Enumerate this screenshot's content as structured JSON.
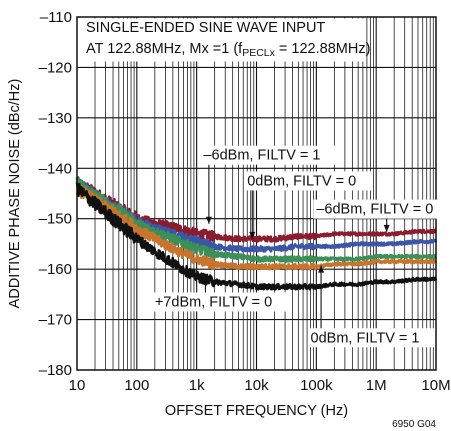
{
  "chart_data": {
    "type": "line",
    "title_line1": "SINGLE-ENDED SINE WAVE INPUT",
    "title_line2_pre": "AT 122.88MHz, Mx =1 (f",
    "title_line2_sub": "PECLx",
    "title_line2_post": " = 122.88MHz)",
    "xlabel": "OFFSET FREQUENCY (Hz)",
    "ylabel": "ADDITIVE PHASE NOISE (dBc/Hz)",
    "x_scale": "log",
    "xlim": [
      10,
      10000000
    ],
    "ylim": [
      -180,
      -110
    ],
    "x_ticks": [
      {
        "value": 10,
        "label": "10"
      },
      {
        "value": 100,
        "label": "100"
      },
      {
        "value": 1000,
        "label": "1k"
      },
      {
        "value": 10000,
        "label": "10k"
      },
      {
        "value": 100000,
        "label": "100k"
      },
      {
        "value": 1000000,
        "label": "1M"
      },
      {
        "value": 10000000,
        "label": "10M"
      }
    ],
    "y_ticks": [
      {
        "value": -110,
        "label": "–110"
      },
      {
        "value": -120,
        "label": "–120"
      },
      {
        "value": -130,
        "label": "–130"
      },
      {
        "value": -140,
        "label": "–140"
      },
      {
        "value": -150,
        "label": "–150"
      },
      {
        "value": -160,
        "label": "–160"
      },
      {
        "value": -170,
        "label": "–170"
      },
      {
        "value": -180,
        "label": "–180"
      }
    ],
    "grid": true,
    "series": [
      {
        "color": "#8a1c2e",
        "x": [
          10,
          20,
          50,
          100,
          200,
          500,
          1000,
          2000,
          5000,
          10000,
          20000,
          50000,
          100000,
          200000,
          500000,
          1000000,
          2000000,
          5000000,
          10000000
        ],
        "y": [
          -143,
          -145,
          -148,
          -150,
          -151,
          -152,
          -153,
          -153.5,
          -154,
          -154,
          -154,
          -153.5,
          -153.5,
          -153,
          -153,
          -153,
          -153,
          -152.5,
          -152.5
        ]
      },
      {
        "color": "#3b55a8",
        "x": [
          10,
          20,
          50,
          100,
          200,
          500,
          1000,
          2000,
          5000,
          10000,
          20000,
          50000,
          100000,
          200000,
          500000,
          1000000,
          2000000,
          5000000,
          10000000
        ],
        "y": [
          -143,
          -145.5,
          -148.5,
          -150.5,
          -152,
          -153.5,
          -154.5,
          -155.5,
          -156,
          -156,
          -156,
          -155.5,
          -155.5,
          -155.5,
          -155,
          -155,
          -155,
          -154.5,
          -154.5
        ]
      },
      {
        "color": "#3d8f5a",
        "x": [
          10,
          20,
          50,
          100,
          200,
          500,
          1000,
          2000,
          5000,
          10000,
          20000,
          50000,
          100000,
          200000,
          500000,
          1000000,
          2000000,
          5000000,
          10000000
        ],
        "y": [
          -143,
          -145.5,
          -148.5,
          -151,
          -152.5,
          -154.5,
          -156,
          -157,
          -157.5,
          -158,
          -158,
          -158,
          -158,
          -158,
          -158,
          -157.5,
          -157.5,
          -157.5,
          -157.5
        ]
      },
      {
        "color": "#c8742d",
        "x": [
          10,
          20,
          50,
          100,
          200,
          500,
          1000,
          2000,
          5000,
          10000,
          20000,
          50000,
          100000,
          200000,
          500000,
          1000000,
          2000000,
          5000000,
          10000000
        ],
        "y": [
          -144,
          -146.5,
          -149.5,
          -152,
          -154,
          -156.5,
          -158,
          -159,
          -159.5,
          -159.5,
          -159.5,
          -159.5,
          -159.5,
          -159,
          -159,
          -158.5,
          -158.5,
          -158.5,
          -158.5
        ]
      },
      {
        "color": "#111111",
        "x": [
          10,
          20,
          50,
          100,
          200,
          500,
          1000,
          2000,
          5000,
          10000,
          20000,
          50000,
          100000,
          200000,
          500000,
          1000000,
          2000000,
          5000000,
          10000000
        ],
        "y": [
          -144,
          -147,
          -151,
          -154,
          -156.5,
          -159.5,
          -161.5,
          -162.5,
          -163,
          -163.5,
          -163.5,
          -163.5,
          -163.5,
          -163,
          -163,
          -162.5,
          -162.5,
          -162,
          -162
        ]
      }
    ],
    "annotations": [
      {
        "text": "–6dBm, FILTV = 1",
        "x": 1300,
        "y": -138.3,
        "arrow_to": [
          1600,
          -151
        ]
      },
      {
        "text": "0dBm, FILTV = 0",
        "x": 7000,
        "y": -143.4,
        "arrow_to": [
          8500,
          -154
        ]
      },
      {
        "text": "–6dBm, FILTV = 0",
        "x": 100000,
        "y": -149,
        "arrow_to": [
          1500000,
          -152.6
        ]
      },
      {
        "text": "+7dBm, FILTV = 0",
        "x": 200,
        "y": -167.4,
        "arrow_to": [
          1400,
          -161.4
        ]
      },
      {
        "text": "0dBm, FILTV = 1",
        "x": 80000,
        "y": -174.5,
        "arrow_to": [
          120000,
          -159.3
        ]
      }
    ],
    "footnote": "6950 G04"
  }
}
